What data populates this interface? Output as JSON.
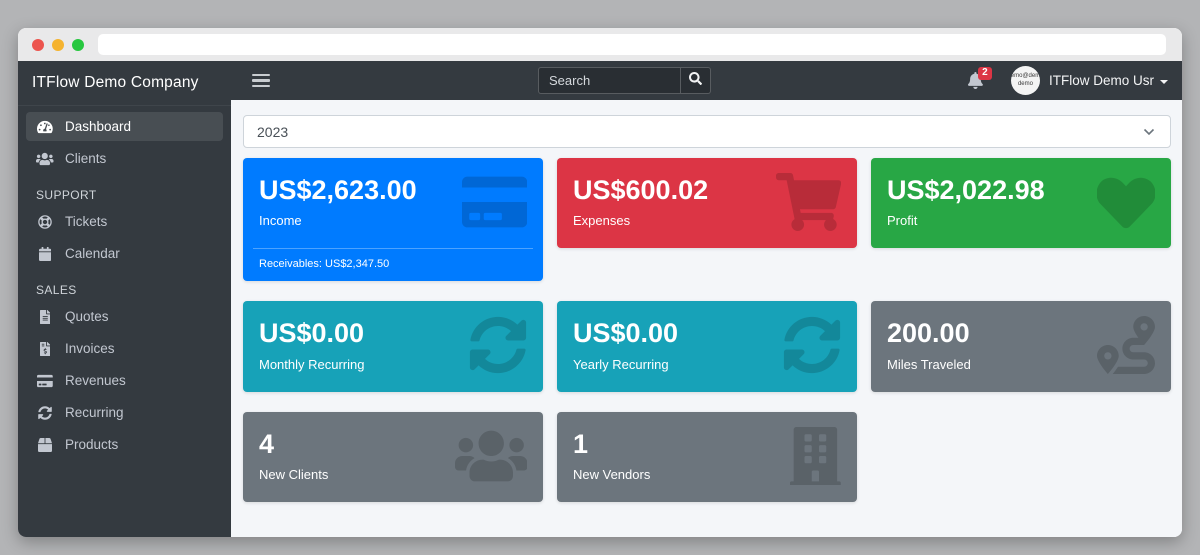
{
  "browser": {
    "url_value": ""
  },
  "navbar": {
    "search_placeholder": "Search",
    "notification_count": "2",
    "avatar_line1": "demo@demo",
    "avatar_line2": "demo",
    "user_name": "ITFlow Demo Usr"
  },
  "sidebar": {
    "brand": "ITFlow Demo Company",
    "sections": [
      {
        "header": "",
        "items": [
          {
            "label": "Dashboard",
            "icon": "tachometer",
            "active": true
          },
          {
            "label": "Clients",
            "icon": "users",
            "active": false
          }
        ]
      },
      {
        "header": "SUPPORT",
        "items": [
          {
            "label": "Tickets",
            "icon": "life-ring",
            "active": false
          },
          {
            "label": "Calendar",
            "icon": "calendar",
            "active": false
          }
        ]
      },
      {
        "header": "SALES",
        "items": [
          {
            "label": "Quotes",
            "icon": "file-alt",
            "active": false
          },
          {
            "label": "Invoices",
            "icon": "file-invoice-dollar",
            "active": false
          },
          {
            "label": "Revenues",
            "icon": "credit-card",
            "active": false
          },
          {
            "label": "Recurring",
            "icon": "sync",
            "active": false
          },
          {
            "label": "Products",
            "icon": "box",
            "active": false
          }
        ]
      }
    ]
  },
  "main": {
    "year_select": "2023",
    "cards": [
      {
        "value": "US$2,623.00",
        "label": "Income",
        "footer": "Receivables: US$2,347.50",
        "color": "#007bff",
        "icon": "credit-card"
      },
      {
        "value": "US$600.02",
        "label": "Expenses",
        "footer": "",
        "color": "#dc3545",
        "icon": "shopping-cart"
      },
      {
        "value": "US$2,022.98",
        "label": "Profit",
        "footer": "",
        "color": "#28a745",
        "icon": "heart"
      },
      {
        "value": "US$0.00",
        "label": "Monthly Recurring",
        "footer": "",
        "color": "#17a2b8",
        "icon": "sync"
      },
      {
        "value": "US$0.00",
        "label": "Yearly Recurring",
        "footer": "",
        "color": "#17a2b8",
        "icon": "sync"
      },
      {
        "value": "200.00",
        "label": "Miles Traveled",
        "footer": "",
        "color": "#6c757d",
        "icon": "route"
      },
      {
        "value": "4",
        "label": "New Clients",
        "footer": "",
        "color": "#6c757d",
        "icon": "users"
      },
      {
        "value": "1",
        "label": "New Vendors",
        "footer": "",
        "color": "#6c757d",
        "icon": "building"
      }
    ]
  },
  "theme": {
    "navbar_bg": "#343a40",
    "content_bg": "#f4f6f9",
    "primary": "#007bff",
    "danger": "#dc3545",
    "success": "#28a745",
    "info": "#17a2b8",
    "secondary": "#6c757d"
  }
}
